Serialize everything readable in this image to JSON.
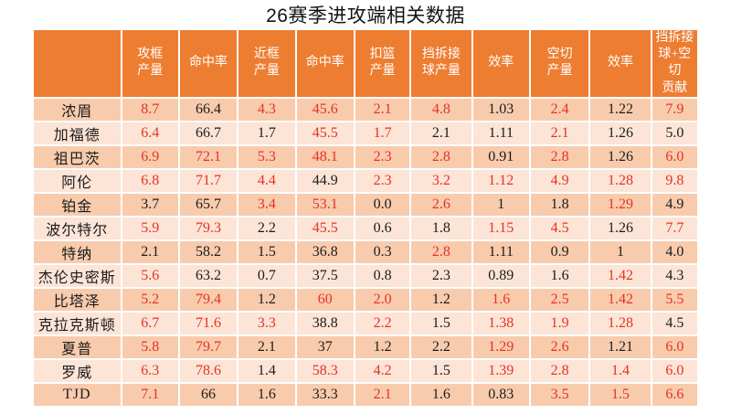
{
  "title": "26赛季进攻端相关数据",
  "corner_label": "",
  "colors": {
    "header_bg": "#ed7d31",
    "row_odd_bg": "#f8cbad",
    "row_even_bg": "#fce4d6",
    "highlight_text": "#e63323",
    "normal_text": "#1c1c1c",
    "header_text": "#ffffff"
  },
  "chart_data": {
    "type": "table",
    "title": "26赛季进攻端相关数据",
    "columns": [
      "攻框\n产量",
      "命中率",
      "近框\n产量",
      "命中率",
      "扣篮\n产量",
      "挡拆接\n球产量",
      "效率",
      "空切\n产量",
      "效率",
      "挡拆接\n球+空切\n贡献"
    ],
    "rows": [
      {
        "name": "浓眉",
        "values": [
          "8.7",
          "66.4",
          "4.3",
          "45.6",
          "2.1",
          "4.8",
          "1.03",
          "2.4",
          "1.22",
          "7.9"
        ],
        "red": [
          1,
          0,
          1,
          1,
          1,
          1,
          0,
          1,
          0,
          1
        ]
      },
      {
        "name": "加福德",
        "values": [
          "6.4",
          "66.7",
          "1.7",
          "45.5",
          "1.7",
          "2.1",
          "1.11",
          "2.1",
          "1.26",
          "5.0"
        ],
        "red": [
          1,
          0,
          0,
          1,
          1,
          0,
          0,
          1,
          0,
          0
        ]
      },
      {
        "name": "祖巴茨",
        "values": [
          "6.9",
          "72.1",
          "5.3",
          "48.1",
          "2.3",
          "2.8",
          "0.91",
          "2.8",
          "1.26",
          "6.0"
        ],
        "red": [
          1,
          1,
          1,
          1,
          1,
          1,
          0,
          1,
          0,
          1
        ]
      },
      {
        "name": "阿伦",
        "values": [
          "6.8",
          "71.7",
          "4.4",
          "44.9",
          "2.3",
          "3.2",
          "1.12",
          "4.9",
          "1.28",
          "9.8"
        ],
        "red": [
          1,
          1,
          1,
          0,
          1,
          1,
          1,
          1,
          1,
          1
        ]
      },
      {
        "name": "铂金",
        "values": [
          "3.7",
          "65.7",
          "3.4",
          "53.1",
          "0.0",
          "2.6",
          "1",
          "1.8",
          "1.29",
          "4.9"
        ],
        "red": [
          0,
          0,
          1,
          1,
          0,
          1,
          0,
          0,
          1,
          0
        ]
      },
      {
        "name": "波尔特尔",
        "values": [
          "5.9",
          "79.3",
          "2.2",
          "45.5",
          "0.6",
          "1.8",
          "1.15",
          "4.5",
          "1.26",
          "7.7"
        ],
        "red": [
          1,
          1,
          0,
          1,
          0,
          0,
          1,
          1,
          0,
          1
        ]
      },
      {
        "name": "特纳",
        "values": [
          "2.1",
          "58.2",
          "1.5",
          "36.8",
          "0.3",
          "2.8",
          "1.11",
          "0.9",
          "1",
          "4.0"
        ],
        "red": [
          0,
          0,
          0,
          0,
          0,
          1,
          0,
          0,
          0,
          0
        ]
      },
      {
        "name": "杰伦史密斯",
        "values": [
          "5.6",
          "63.2",
          "0.7",
          "37.5",
          "0.8",
          "2.3",
          "0.89",
          "1.6",
          "1.42",
          "4.3"
        ],
        "red": [
          1,
          0,
          0,
          0,
          0,
          0,
          0,
          0,
          1,
          0
        ]
      },
      {
        "name": "比塔泽",
        "values": [
          "5.2",
          "79.4",
          "1.2",
          "60",
          "2.0",
          "1.2",
          "1.6",
          "2.5",
          "1.42",
          "5.5"
        ],
        "red": [
          1,
          1,
          0,
          1,
          1,
          0,
          1,
          1,
          1,
          1
        ]
      },
      {
        "name": "克拉克斯顿",
        "values": [
          "6.7",
          "71.6",
          "3.3",
          "38.8",
          "2.2",
          "1.5",
          "1.38",
          "1.9",
          "1.28",
          "4.5"
        ],
        "red": [
          1,
          1,
          1,
          0,
          1,
          0,
          1,
          1,
          1,
          0
        ]
      },
      {
        "name": "夏普",
        "values": [
          "5.8",
          "79.7",
          "2.1",
          "37",
          "1.2",
          "2.2",
          "1.29",
          "2.6",
          "1.21",
          "6.0"
        ],
        "red": [
          1,
          1,
          0,
          0,
          0,
          0,
          1,
          1,
          0,
          1
        ]
      },
      {
        "name": "罗威",
        "values": [
          "6.3",
          "78.6",
          "1.4",
          "58.3",
          "4.2",
          "1.5",
          "1.39",
          "2.8",
          "1.4",
          "6.0"
        ],
        "red": [
          1,
          1,
          0,
          1,
          1,
          0,
          1,
          1,
          1,
          1
        ]
      },
      {
        "name": "TJD",
        "values": [
          "7.1",
          "66",
          "1.6",
          "33.3",
          "2.1",
          "1.6",
          "0.83",
          "3.5",
          "1.5",
          "6.6"
        ],
        "red": [
          1,
          0,
          0,
          0,
          1,
          0,
          0,
          1,
          1,
          1
        ]
      }
    ]
  }
}
